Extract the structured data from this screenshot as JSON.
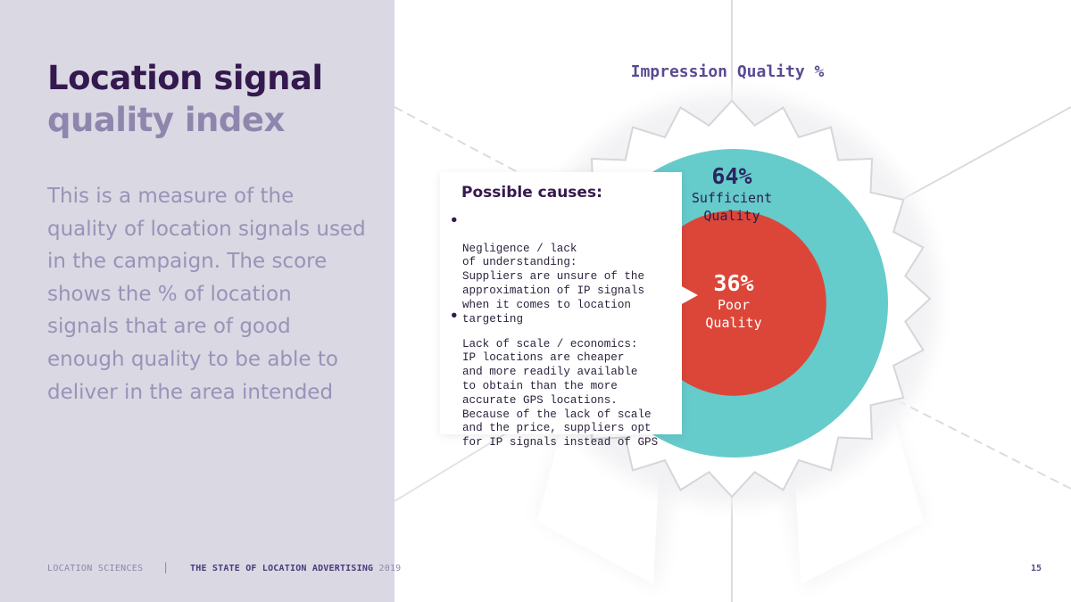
{
  "slide": {
    "title_line1": "Location signal",
    "title_line2": "quality index",
    "description": "This is a measure of the quality of location signals used in the campaign. The score shows the % of location signals that are of good enough quality to be able to deliver in the area intended",
    "footer": {
      "brand": "LOCATION SCIENCES",
      "separator": "|",
      "report": "THE STATE OF LOCATION ADVERTISING",
      "year": "2019",
      "page_number": "15"
    }
  },
  "callout": {
    "title": "Possible causes:",
    "causes": [
      {
        "bullet": "●",
        "text": "Negligence / lack\nof understanding:\nSuppliers are unsure of the\napproximation of IP signals\nwhen it comes to location\ntargeting"
      },
      {
        "bullet": "●",
        "text": "Lack of scale / economics:\nIP locations are cheaper\nand more readily available\nto obtain than the more\naccurate GPS locations.\nBecause of the lack of scale\nand the price, suppliers opt\nfor IP signals instead of GPS"
      }
    ]
  },
  "colors": {
    "sufficient": "#66cbcb",
    "poor": "#dc4639",
    "left_panel": "#dad8e3",
    "title_dark": "#34194f",
    "title_light": "#8f86ad"
  },
  "chart_data": {
    "type": "pie",
    "title": "Impression Quality %",
    "series": [
      {
        "name": "Sufficient Quality",
        "value": 64,
        "label": "64%"
      },
      {
        "name": "Poor Quality",
        "value": 36,
        "label": "36%"
      }
    ],
    "labels_split": {
      "sufficient_l1": "Sufficient",
      "sufficient_l2": "Quality",
      "poor_l1": "Poor",
      "poor_l2": "Quality"
    }
  }
}
